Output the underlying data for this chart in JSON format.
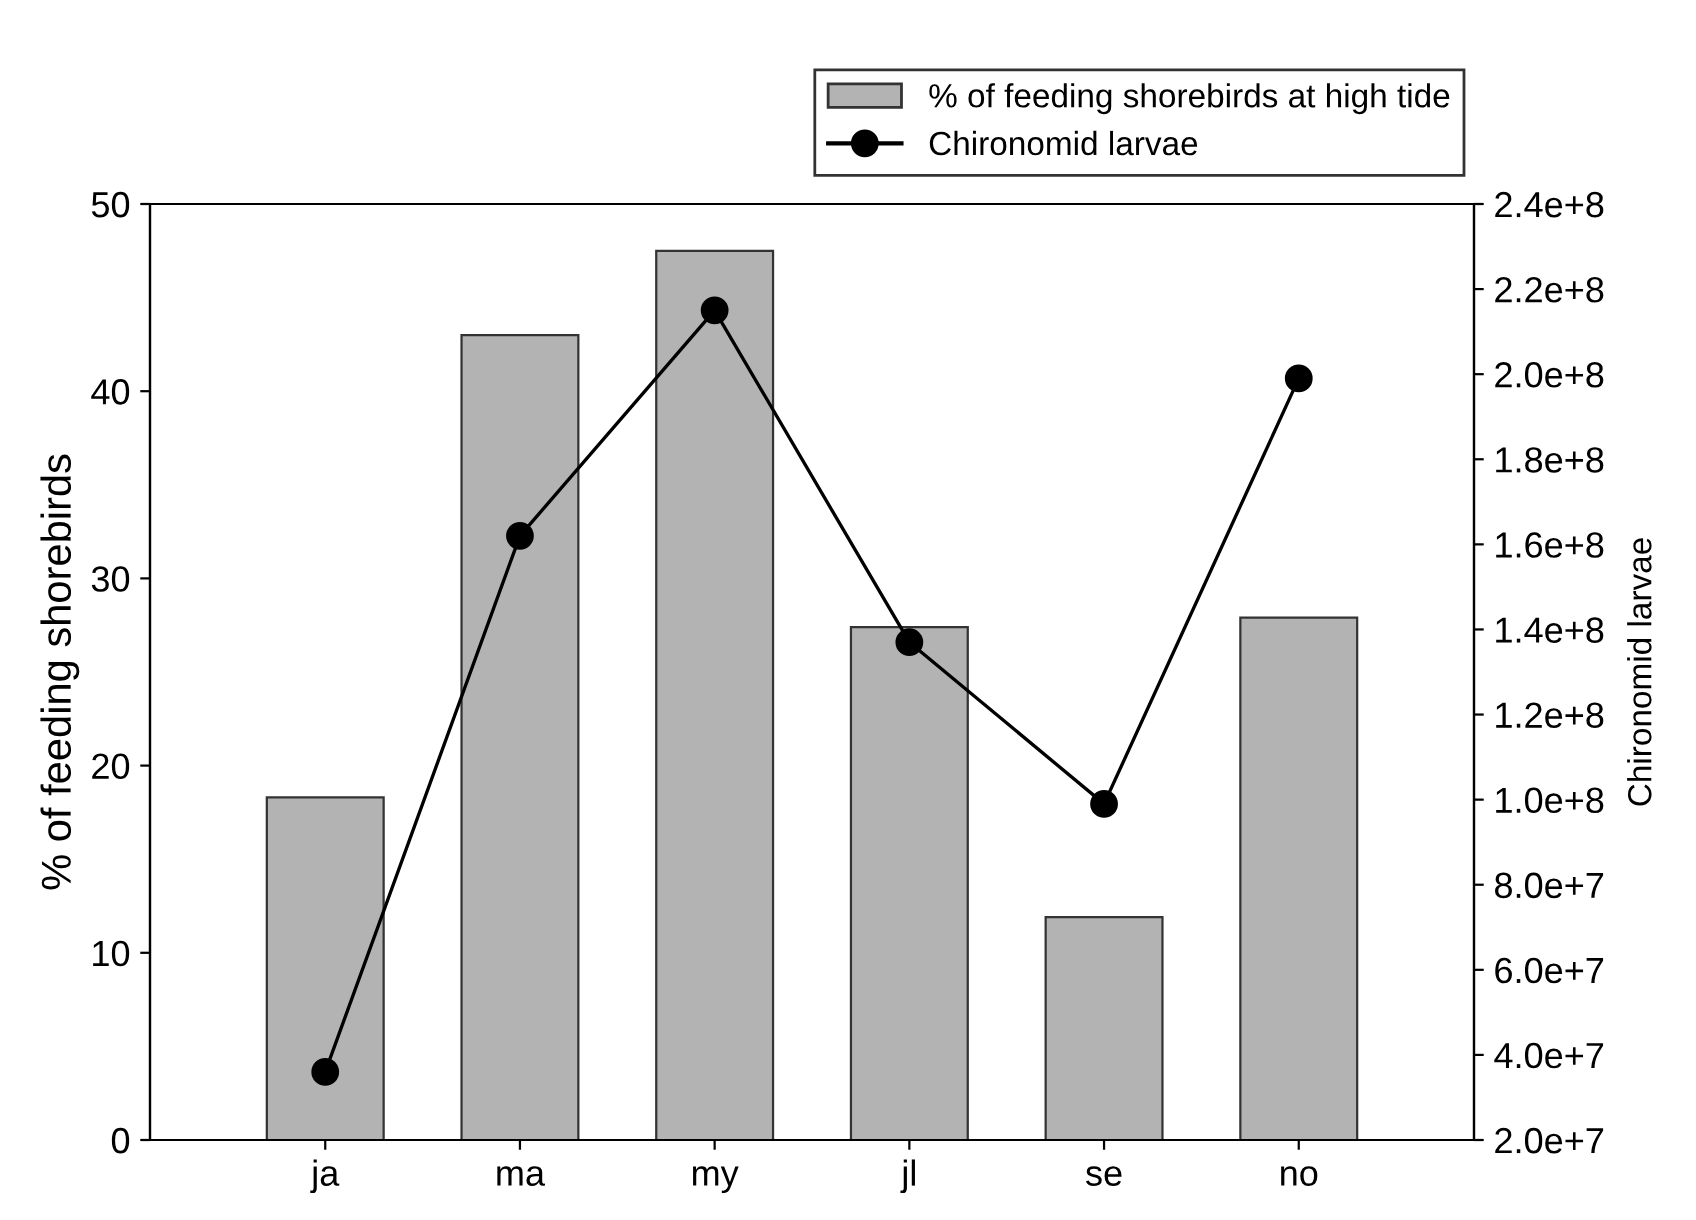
{
  "chart_data": {
    "type": "bar",
    "ylabel": "% of feeding shorebirds",
    "y2label": "Chironomid larvae",
    "categories": [
      "ja",
      "ma",
      "my",
      "jl",
      "se",
      "no"
    ],
    "series": [
      {
        "name": "% of feeding shorebirds at high tide",
        "color": "#b3b3b3",
        "values": [
          18.3,
          43.0,
          47.5,
          27.4,
          11.9,
          27.9
        ]
      },
      {
        "name": "Chironomid larvae",
        "type": "line",
        "axis": "y2",
        "color": "#000000",
        "marker": "circle",
        "line_style": "solid",
        "values": [
          36000000,
          162000000,
          215000000,
          137000000,
          99000000,
          199000000
        ]
      }
    ],
    "ylim": [
      0,
      50
    ],
    "yticks": [
      0,
      10,
      20,
      30,
      40,
      50
    ],
    "y2lim": [
      20000000,
      240000000
    ],
    "y2ticks": [
      {
        "value": 20000000,
        "label": "2.0e+7"
      },
      {
        "value": 40000000,
        "label": "4.0e+7"
      },
      {
        "value": 60000000,
        "label": "6.0e+7"
      },
      {
        "value": 80000000,
        "label": "8.0e+7"
      },
      {
        "value": 100000000,
        "label": "1.0e+8"
      },
      {
        "value": 120000000,
        "label": "1.2e+8"
      },
      {
        "value": 140000000,
        "label": "1.4e+8"
      },
      {
        "value": 160000000,
        "label": "1.6e+8"
      },
      {
        "value": 180000000,
        "label": "1.8e+8"
      },
      {
        "value": 200000000,
        "label": "2.0e+8"
      },
      {
        "value": 220000000,
        "label": "2.2e+8"
      },
      {
        "value": 240000000,
        "label": "2.4e+8"
      }
    ],
    "legend": "top right",
    "grid": false
  }
}
